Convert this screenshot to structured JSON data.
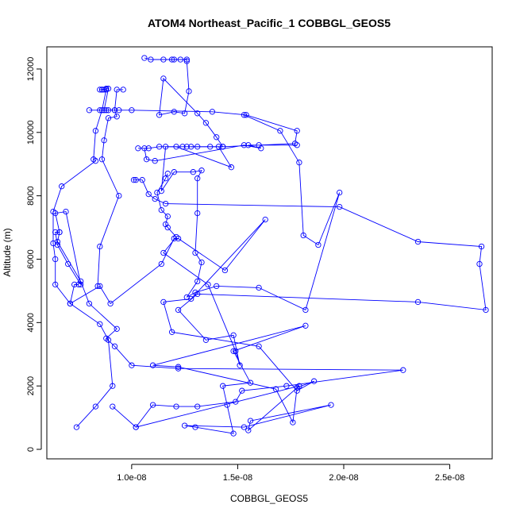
{
  "chart_data": {
    "type": "line",
    "title": "ATOM4 Northeast_Pacific_1 COBBGL_GEOS5",
    "xlabel": "COBBGL_GEOS5",
    "ylabel": "Altitude (m)",
    "xlim": [
      6e-09,
      2.7e-08
    ],
    "ylim": [
      -300,
      12700
    ],
    "x_ticks": [
      1e-08,
      1.5e-08,
      2e-08,
      2.5e-08
    ],
    "x_tick_labels": [
      "1.0e-08",
      "1.5e-08",
      "2.0e-08",
      "2.5e-08"
    ],
    "y_ticks": [
      0,
      2000,
      4000,
      6000,
      8000,
      10000,
      12000
    ],
    "y_tick_labels": [
      "0",
      "2000",
      "4000",
      "6000",
      "8000",
      "10000",
      "12000"
    ],
    "marker": "open-circle",
    "series_color": "#0000ff",
    "series": [
      {
        "points": [
          [
            7.4e-09,
            700
          ],
          [
            8.3e-09,
            1350
          ],
          [
            9.1e-09,
            2000
          ],
          [
            8.9e-09,
            3450
          ],
          [
            8.5e-09,
            3950
          ],
          [
            7.1e-09,
            4600
          ],
          [
            6.4e-09,
            5200
          ],
          [
            6.4e-09,
            6000
          ],
          [
            6.3e-09,
            6500
          ],
          [
            6.3e-09,
            7500
          ],
          [
            6.7e-09,
            8300
          ],
          [
            8.3e-09,
            9100
          ],
          [
            8.2e-09,
            9150
          ],
          [
            8.3e-09,
            10050
          ],
          [
            8.6e-09,
            10700
          ],
          [
            8.8e-09,
            11350
          ],
          [
            8.7e-09,
            11350
          ],
          [
            8.6e-09,
            11350
          ],
          [
            8.5e-09,
            11350
          ],
          [
            8.6e-09,
            11350
          ],
          [
            8.8e-09,
            11380
          ],
          [
            8.9e-09,
            11380
          ],
          [
            8.7e-09,
            10700
          ],
          [
            8e-09,
            10700
          ],
          [
            8.5e-09,
            10700
          ],
          [
            8.8e-09,
            10700
          ],
          [
            8.9e-09,
            10700
          ],
          [
            9.2e-09,
            10700
          ],
          [
            9.4e-09,
            10700
          ],
          [
            1e-08,
            10700
          ],
          [
            1.38e-08,
            10650
          ],
          [
            1.54e-08,
            10550
          ],
          [
            1.78e-08,
            10050
          ],
          [
            1.77e-08,
            9650
          ],
          [
            1.43e-08,
            9550
          ],
          [
            1.31e-08,
            9550
          ],
          [
            1.28e-08,
            9550
          ],
          [
            1.37e-08,
            9550
          ],
          [
            1.41e-08,
            9550
          ],
          [
            1.47e-08,
            8900
          ],
          [
            1.21e-08,
            9550
          ],
          [
            1.13e-08,
            9550
          ],
          [
            1.08e-08,
            9500
          ],
          [
            1.03e-08,
            9500
          ],
          [
            1.06e-08,
            9500
          ],
          [
            1.07e-08,
            9150
          ],
          [
            1.11e-08,
            9100
          ],
          [
            1.53e-08,
            9600
          ],
          [
            1.61e-08,
            9500
          ],
          [
            1.55e-08,
            9600
          ],
          [
            1.6e-08,
            9600
          ],
          [
            1.78e-08,
            9600
          ]
        ]
      },
      {
        "points": [
          [
            1.06e-08,
            12350
          ],
          [
            1.09e-08,
            12300
          ],
          [
            1.15e-08,
            12300
          ],
          [
            1.19e-08,
            12300
          ],
          [
            1.2e-08,
            12300
          ],
          [
            1.23e-08,
            12300
          ],
          [
            1.26e-08,
            12300
          ],
          [
            1.26e-08,
            12250
          ],
          [
            1.27e-08,
            11300
          ],
          [
            1.25e-08,
            10600
          ],
          [
            1.2e-08,
            10650
          ],
          [
            1.13e-08,
            10550
          ],
          [
            1.15e-08,
            11700
          ],
          [
            1.31e-08,
            10600
          ],
          [
            1.35e-08,
            10300
          ],
          [
            1.4e-08,
            9850
          ],
          [
            1.43e-08,
            9550
          ],
          [
            1.26e-08,
            9550
          ],
          [
            1.24e-08,
            9550
          ],
          [
            1.16e-08,
            9550
          ],
          [
            1.14e-08,
            8150
          ],
          [
            1.2e-08,
            8750
          ],
          [
            1.29e-08,
            8750
          ],
          [
            1.33e-08,
            8800
          ],
          [
            1.31e-08,
            8550
          ],
          [
            1.31e-08,
            7450
          ],
          [
            1.3e-08,
            6200
          ],
          [
            1.33e-08,
            5900
          ],
          [
            1.31e-08,
            5300
          ],
          [
            1.26e-08,
            4800
          ],
          [
            1.3e-08,
            4950
          ],
          [
            1.4e-08,
            5150
          ],
          [
            1.6e-08,
            5100
          ],
          [
            1.82e-08,
            4400
          ],
          [
            1.98e-08,
            8100
          ],
          [
            1.88e-08,
            6450
          ],
          [
            1.81e-08,
            6750
          ],
          [
            1.79e-08,
            9050
          ],
          [
            1.7e-08,
            10050
          ],
          [
            1.53e-08,
            10550
          ]
        ]
      },
      {
        "points": [
          [
            1.01e-08,
            8500
          ],
          [
            1.02e-08,
            8500
          ],
          [
            1.05e-08,
            8500
          ],
          [
            1.08e-08,
            8050
          ],
          [
            1.11e-08,
            7900
          ],
          [
            1.16e-08,
            7750
          ],
          [
            1.98e-08,
            7650
          ],
          [
            2.35e-08,
            6550
          ],
          [
            2.65e-08,
            6400
          ],
          [
            2.64e-08,
            5850
          ],
          [
            2.67e-08,
            4400
          ],
          [
            2.35e-08,
            4650
          ],
          [
            1.31e-08,
            4900
          ],
          [
            1.22e-08,
            4400
          ],
          [
            1.35e-08,
            3450
          ],
          [
            1.48e-08,
            3600
          ],
          [
            1.51e-08,
            2650
          ],
          [
            1.49e-08,
            3100
          ],
          [
            1.36e-08,
            5200
          ],
          [
            1.15e-08,
            6200
          ],
          [
            1.21e-08,
            6700
          ],
          [
            1.17e-08,
            7000
          ],
          [
            1.16e-08,
            7100
          ],
          [
            1.17e-08,
            7350
          ],
          [
            1.14e-08,
            7550
          ],
          [
            1.12e-08,
            8100
          ],
          [
            1.16e-08,
            8550
          ],
          [
            1.17e-08,
            8700
          ]
        ]
      },
      {
        "points": [
          [
            7.5e-09,
            5200
          ],
          [
            7.3e-09,
            5200
          ],
          [
            7.1e-09,
            4600
          ],
          [
            8.5e-09,
            5150
          ],
          [
            9e-09,
            4600
          ],
          [
            1.14e-08,
            5850
          ],
          [
            1.2e-08,
            6650
          ],
          [
            1.22e-08,
            6650
          ],
          [
            1.44e-08,
            5650
          ],
          [
            1.63e-08,
            7250
          ],
          [
            1.28e-08,
            4750
          ],
          [
            1.15e-08,
            4650
          ],
          [
            1.19e-08,
            3700
          ],
          [
            1.6e-08,
            3250
          ],
          [
            1.78e-08,
            1850
          ],
          [
            1.86e-08,
            2150
          ],
          [
            1.78e-08,
            1950
          ],
          [
            1.76e-08,
            850
          ],
          [
            1.68e-08,
            1900
          ],
          [
            1.22e-08,
            2600
          ],
          [
            1.1e-08,
            2650
          ],
          [
            1.82e-08,
            3900
          ],
          [
            1.48e-08,
            3100
          ],
          [
            1.56e-08,
            2100
          ],
          [
            1.43e-08,
            2000
          ],
          [
            1.45e-08,
            1400
          ],
          [
            1.48e-08,
            500
          ],
          [
            1.3e-08,
            700
          ],
          [
            1.25e-08,
            750
          ],
          [
            1.53e-08,
            700
          ],
          [
            1.94e-08,
            1400
          ],
          [
            1.56e-08,
            900
          ],
          [
            1.55e-08,
            600
          ],
          [
            1.79e-08,
            2000
          ],
          [
            1.02e-08,
            700
          ],
          [
            9.1e-09,
            1350
          ]
        ]
      },
      {
        "points": [
          [
            6.6e-09,
            6850
          ],
          [
            6.4e-09,
            7450
          ],
          [
            6.9e-09,
            7500
          ],
          [
            7.6e-09,
            5200
          ],
          [
            7e-09,
            5850
          ],
          [
            6.5e-09,
            6450
          ],
          [
            6.4e-09,
            6850
          ],
          [
            6.6e-09,
            6850
          ],
          [
            6.5e-09,
            6550
          ],
          [
            7.6e-09,
            5300
          ],
          [
            8e-09,
            4600
          ],
          [
            9.3e-09,
            3800
          ],
          [
            8.8e-09,
            3500
          ],
          [
            9.2e-09,
            3250
          ],
          [
            1e-08,
            2650
          ],
          [
            1.22e-08,
            2550
          ],
          [
            2.28e-08,
            2500
          ],
          [
            1.73e-08,
            2000
          ],
          [
            1.52e-08,
            1850
          ],
          [
            1.49e-08,
            1500
          ],
          [
            1.31e-08,
            1350
          ],
          [
            1.21e-08,
            1350
          ],
          [
            1.1e-08,
            1400
          ],
          [
            1.02e-08,
            700
          ]
        ]
      },
      {
        "points": [
          [
            8.4e-09,
            5150
          ],
          [
            8.5e-09,
            6400
          ],
          [
            9.4e-09,
            8000
          ],
          [
            8.6e-09,
            9150
          ],
          [
            8.7e-09,
            9750
          ],
          [
            8.9e-09,
            10450
          ],
          [
            9.3e-09,
            10500
          ],
          [
            9.2e-09,
            10700
          ],
          [
            9.3e-09,
            11350
          ],
          [
            9.6e-09,
            11350
          ]
        ]
      }
    ]
  }
}
